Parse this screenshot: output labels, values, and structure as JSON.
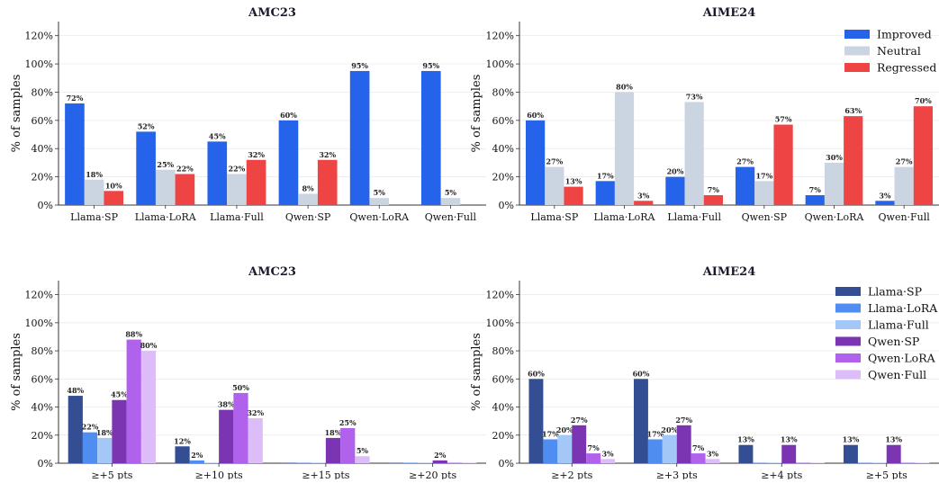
{
  "chart_data": [
    {
      "type": "bar",
      "title": "AMC23",
      "ylabel": "% of samples",
      "ylim": [
        0,
        130
      ],
      "yticks": [
        "0%",
        "20%",
        "40%",
        "60%",
        "80%",
        "100%",
        "120%"
      ],
      "categories": [
        "Llama·SP",
        "Llama·LoRA",
        "Llama·Full",
        "Qwen·SP",
        "Qwen·LoRA",
        "Qwen·Full"
      ],
      "series": [
        {
          "name": "Improved",
          "color": "#2563eb",
          "values": [
            72,
            52,
            45,
            60,
            95,
            95
          ],
          "labels": [
            "72%",
            "52%",
            "45%",
            "60%",
            "95%",
            "95%"
          ]
        },
        {
          "name": "Neutral",
          "color": "#cbd5e1",
          "values": [
            18,
            25,
            22,
            8,
            5,
            5
          ],
          "labels": [
            "18%",
            "25%",
            "22%",
            "8%",
            "5%",
            "5%"
          ]
        },
        {
          "name": "Regressed",
          "color": "#ef4444",
          "values": [
            10,
            22,
            32,
            32,
            0.5,
            0.5
          ],
          "labels": [
            "10%",
            "22%",
            "32%",
            "32%",
            "",
            ""
          ]
        }
      ],
      "legend": false
    },
    {
      "type": "bar",
      "title": "AIME24",
      "ylabel": "% of samples",
      "ylim": [
        0,
        130
      ],
      "yticks": [
        "0%",
        "20%",
        "40%",
        "60%",
        "80%",
        "100%",
        "120%"
      ],
      "categories": [
        "Llama·SP",
        "Llama·LoRA",
        "Llama·Full",
        "Qwen·SP",
        "Qwen·LoRA",
        "Qwen·Full"
      ],
      "series": [
        {
          "name": "Improved",
          "color": "#2563eb",
          "values": [
            60,
            17,
            20,
            27,
            7,
            3
          ],
          "labels": [
            "60%",
            "17%",
            "20%",
            "27%",
            "7%",
            "3%"
          ]
        },
        {
          "name": "Neutral",
          "color": "#cbd5e1",
          "values": [
            27,
            80,
            73,
            17,
            30,
            27
          ],
          "labels": [
            "27%",
            "80%",
            "73%",
            "17%",
            "30%",
            "27%"
          ]
        },
        {
          "name": "Regressed",
          "color": "#ef4444",
          "values": [
            13,
            3,
            7,
            57,
            63,
            70
          ],
          "labels": [
            "13%",
            "3%",
            "7%",
            "57%",
            "63%",
            "70%"
          ]
        }
      ],
      "legend": true,
      "legend_position": "top-right"
    },
    {
      "type": "bar",
      "title": "AMC23",
      "ylabel": "% of samples",
      "ylim": [
        0,
        130
      ],
      "yticks": [
        "0%",
        "20%",
        "40%",
        "60%",
        "80%",
        "100%",
        "120%"
      ],
      "categories": [
        "≥+5 pts",
        "≥+10 pts",
        "≥+15 pts",
        "≥+20 pts"
      ],
      "series": [
        {
          "name": "Llama·SP",
          "color": "#334e93",
          "values": [
            48,
            12,
            0.3,
            0.3
          ],
          "labels": [
            "48%",
            "12%",
            "",
            ""
          ]
        },
        {
          "name": "Llama·LoRA",
          "color": "#4f8ef0",
          "values": [
            22,
            2,
            0.3,
            0.3
          ],
          "labels": [
            "22%",
            "2%",
            "",
            ""
          ]
        },
        {
          "name": "Llama·Full",
          "color": "#a3c8f7",
          "values": [
            18,
            0.3,
            0.3,
            0.3
          ],
          "labels": [
            "18%",
            "",
            "",
            ""
          ]
        },
        {
          "name": "Qwen·SP",
          "color": "#7b35b3",
          "values": [
            45,
            38,
            18,
            2
          ],
          "labels": [
            "45%",
            "38%",
            "18%",
            "2%"
          ]
        },
        {
          "name": "Qwen·LoRA",
          "color": "#b062ec",
          "values": [
            88,
            50,
            25,
            0.3
          ],
          "labels": [
            "88%",
            "50%",
            "25%",
            ""
          ]
        },
        {
          "name": "Qwen·Full",
          "color": "#dcbdf8",
          "values": [
            80,
            32,
            5,
            0.3
          ],
          "labels": [
            "80%",
            "32%",
            "5%",
            ""
          ]
        }
      ],
      "legend": false
    },
    {
      "type": "bar",
      "title": "AIME24",
      "ylabel": "% of samples",
      "ylim": [
        0,
        130
      ],
      "yticks": [
        "0%",
        "20%",
        "40%",
        "60%",
        "80%",
        "100%",
        "120%"
      ],
      "categories": [
        "≥+2 pts",
        "≥+3 pts",
        "≥+4 pts",
        "≥+5 pts"
      ],
      "series": [
        {
          "name": "Llama·SP",
          "color": "#334e93",
          "values": [
            60,
            60,
            13,
            13
          ],
          "labels": [
            "60%",
            "60%",
            "13%",
            "13%"
          ]
        },
        {
          "name": "Llama·LoRA",
          "color": "#4f8ef0",
          "values": [
            17,
            17,
            0.3,
            0.3
          ],
          "labels": [
            "17%",
            "17%",
            "",
            ""
          ]
        },
        {
          "name": "Llama·Full",
          "color": "#a3c8f7",
          "values": [
            20,
            20,
            0.3,
            0.3
          ],
          "labels": [
            "20%",
            "20%",
            "",
            ""
          ]
        },
        {
          "name": "Qwen·SP",
          "color": "#7b35b3",
          "values": [
            27,
            27,
            13,
            13
          ],
          "labels": [
            "27%",
            "27%",
            "13%",
            "13%"
          ]
        },
        {
          "name": "Qwen·LoRA",
          "color": "#b062ec",
          "values": [
            7,
            7,
            0.3,
            0.3
          ],
          "labels": [
            "7%",
            "7%",
            "",
            ""
          ]
        },
        {
          "name": "Qwen·Full",
          "color": "#dcbdf8",
          "values": [
            3,
            3,
            0.3,
            0.3
          ],
          "labels": [
            "3%",
            "3%",
            "",
            ""
          ]
        }
      ],
      "legend": true,
      "legend_position": "top-right"
    }
  ]
}
